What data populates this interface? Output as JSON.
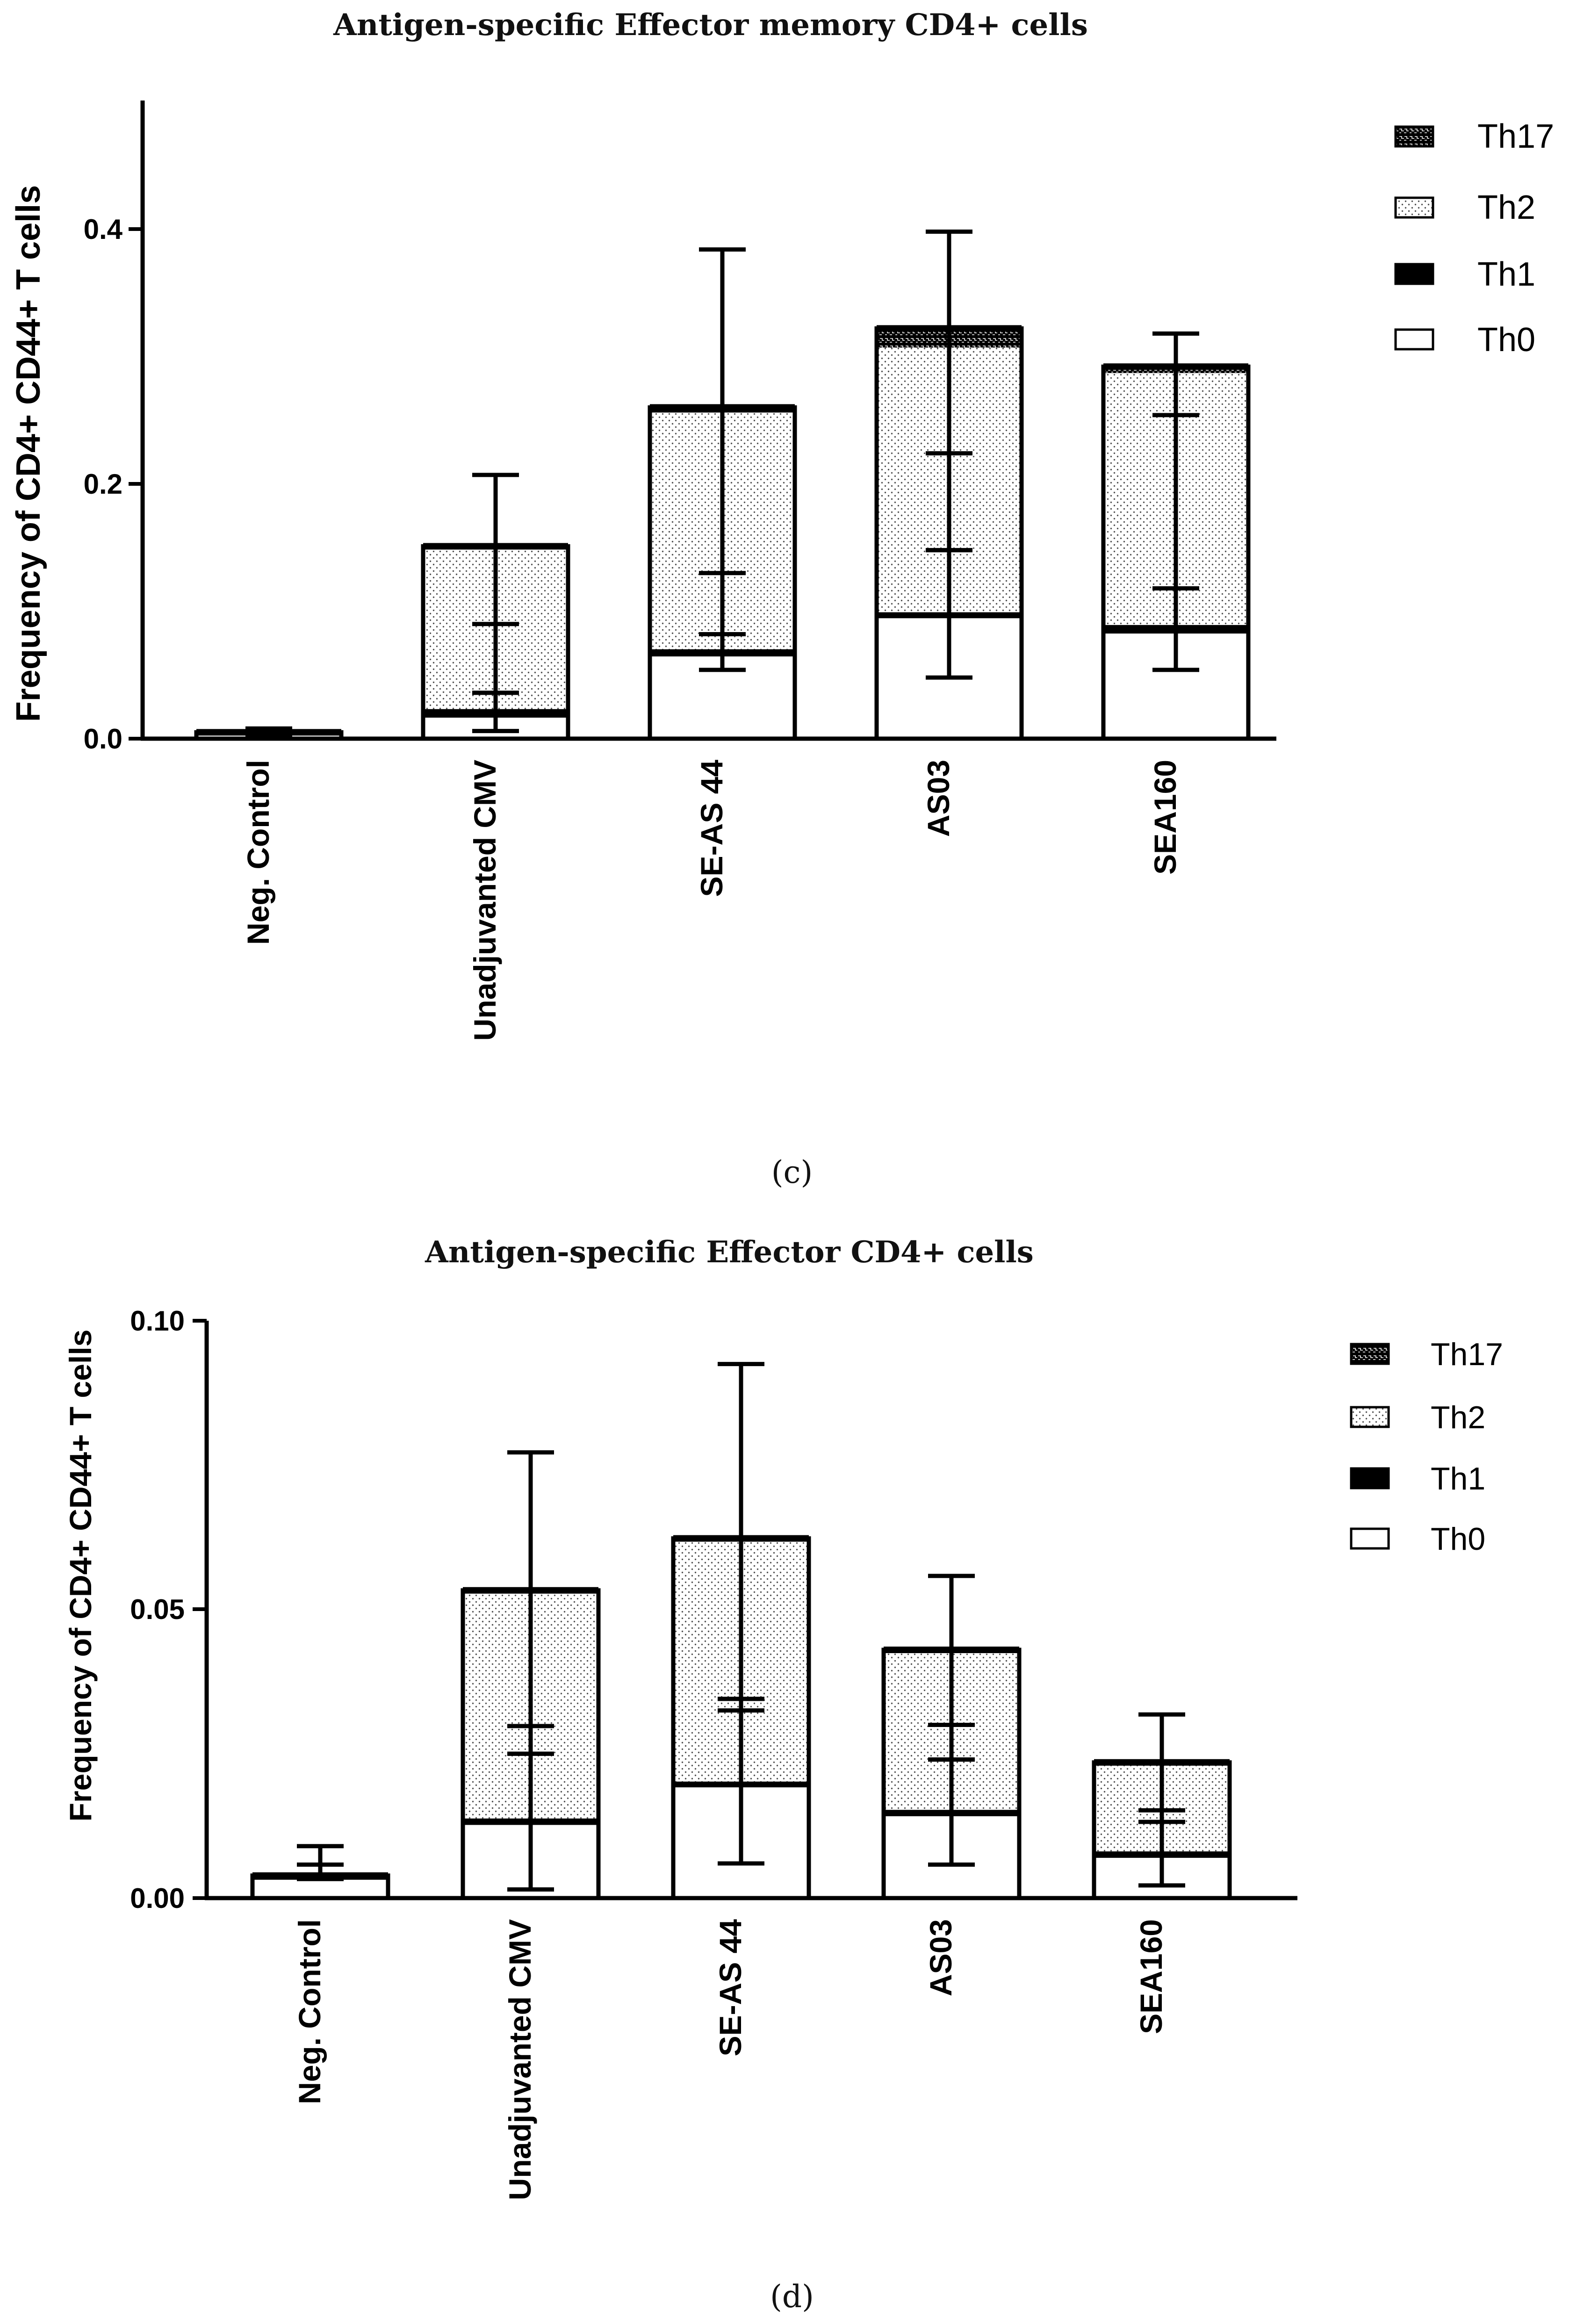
{
  "colors": {
    "ink": "#000000",
    "background": "#ffffff",
    "th17_fill": "#000000",
    "th2_dots": "#555555"
  },
  "chart_data": [
    {
      "panel": "c",
      "type": "bar",
      "stacked": true,
      "title": "Antigen-specific Effector memory CD4+ cells",
      "ylabel": "Frequency of CD4+ CD44+ T cells",
      "xlabel": "",
      "ylim": [
        0,
        0.5
      ],
      "yticks": [
        0.0,
        0.2,
        0.4
      ],
      "ytick_labels": [
        "0.0",
        "0.2",
        "0.4"
      ],
      "categories": [
        "Neg. Control",
        "Unadjuvanted CMV",
        "SE-AS 44",
        "AS03",
        "SEA160"
      ],
      "legend": [
        "Th17",
        "Th2",
        "Th1",
        "Th0"
      ],
      "series": [
        {
          "name": "Th0",
          "pattern": "white",
          "values": [
            0.004,
            0.018,
            0.066,
            0.096,
            0.084
          ],
          "err_low": [
            0.003,
            0.006,
            0.054,
            0.048,
            0.054
          ],
          "err_high": [
            0.006,
            0.036,
            0.082,
            0.148,
            0.118
          ]
        },
        {
          "name": "Th1",
          "pattern": "solid",
          "values": [
            0.001,
            0.003,
            0.002,
            0.001,
            0.003
          ],
          "err_low": [
            null,
            null,
            null,
            null,
            null
          ],
          "err_high": [
            null,
            null,
            null,
            null,
            null
          ]
        },
        {
          "name": "Th2",
          "pattern": "dotted",
          "values": [
            0.0,
            0.128,
            0.188,
            0.21,
            0.2
          ],
          "err_low": [
            null,
            0.036,
            0.082,
            0.148,
            0.118
          ],
          "err_high": [
            null,
            0.09,
            0.13,
            0.224,
            0.254
          ]
        },
        {
          "name": "Th17",
          "pattern": "brick",
          "values": [
            0.0,
            0.002,
            0.004,
            0.015,
            0.005
          ],
          "err_low": [
            null,
            null,
            null,
            null,
            null
          ],
          "err_high": [
            0.008,
            0.207,
            0.384,
            0.398,
            0.318
          ]
        }
      ],
      "caption": "(c)"
    },
    {
      "panel": "d",
      "type": "bar",
      "stacked": true,
      "title": "Antigen-specific Effector CD4+ cells",
      "ylabel": "Frequency of CD4+ CD44+ T cells",
      "xlabel": "",
      "ylim": [
        0,
        0.1
      ],
      "yticks": [
        0.0,
        0.05,
        0.1
      ],
      "ytick_labels": [
        "0.00",
        "0.05",
        "0.10"
      ],
      "categories": [
        "Neg. Control",
        "Unadjuvanted CMV",
        "SE-AS 44",
        "AS03",
        "SEA160"
      ],
      "legend": [
        "Th17",
        "Th2",
        "Th1",
        "Th0"
      ],
      "series": [
        {
          "name": "Th0",
          "pattern": "white",
          "values": [
            0.0035,
            0.013,
            0.0195,
            0.0145,
            0.0073
          ],
          "err_low": [
            0.0033,
            0.0015,
            0.006,
            0.0058,
            0.0022
          ],
          "err_high": [
            0.0058,
            0.025,
            0.0345,
            0.024,
            0.0132
          ]
        },
        {
          "name": "Th1",
          "pattern": "solid",
          "values": [
            0.0004,
            0.0003,
            0.0002,
            0.0003,
            0.0003
          ],
          "err_low": [
            null,
            null,
            null,
            null,
            null
          ],
          "err_high": [
            null,
            null,
            null,
            null,
            null
          ]
        },
        {
          "name": "Th2",
          "pattern": "dotted",
          "values": [
            0.0,
            0.0398,
            0.0424,
            0.028,
            0.0157
          ],
          "err_low": [
            null,
            0.025,
            0.0325,
            0.024,
            0.0132
          ],
          "err_high": [
            null,
            0.0298,
            0.0345,
            0.03,
            0.0152
          ]
        },
        {
          "name": "Th17",
          "pattern": "brick",
          "values": [
            0.0,
            0.0002,
            0.0002,
            0.0002,
            0.0002
          ],
          "err_low": [
            null,
            null,
            null,
            null,
            null
          ],
          "err_high": [
            0.009,
            0.0772,
            0.0925,
            0.0558,
            0.0318
          ]
        }
      ],
      "caption": "(d)"
    }
  ]
}
